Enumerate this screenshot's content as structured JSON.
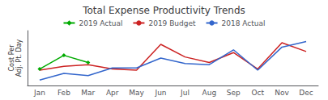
{
  "chart_data": {
    "type": "line",
    "title": "Total Expense Productivity Trends",
    "ylabel": "Cost Per\nAdj. Pt. Day",
    "categories": [
      "Jan",
      "Feb",
      "Mar",
      "Apr",
      "May",
      "Jun",
      "Jul",
      "Aug",
      "Sep",
      "Oct",
      "Nov",
      "Dec"
    ],
    "series": [
      {
        "name": "2019 Actual",
        "color": "#00aa00",
        "marker": "diamond",
        "line_style": "solid",
        "values": [
          0.3,
          0.55,
          0.42,
          null,
          null,
          null,
          null,
          null,
          null,
          null,
          null,
          null
        ]
      },
      {
        "name": "2019 Budget",
        "color": "#cc2222",
        "line_style": "solid",
        "values": [
          0.28,
          0.35,
          0.38,
          0.3,
          0.28,
          0.75,
          0.52,
          0.42,
          0.6,
          0.3,
          0.78,
          0.62
        ]
      },
      {
        "name": "2018 Actual",
        "color": "#3366cc",
        "line_style": "solid",
        "values": [
          0.1,
          0.22,
          0.18,
          0.32,
          0.32,
          0.5,
          0.4,
          0.38,
          0.65,
          0.28,
          0.7,
          0.8
        ]
      }
    ],
    "ylim": [
      0,
      1
    ],
    "grid": false,
    "tick_labels": "x",
    "legend": "top"
  }
}
